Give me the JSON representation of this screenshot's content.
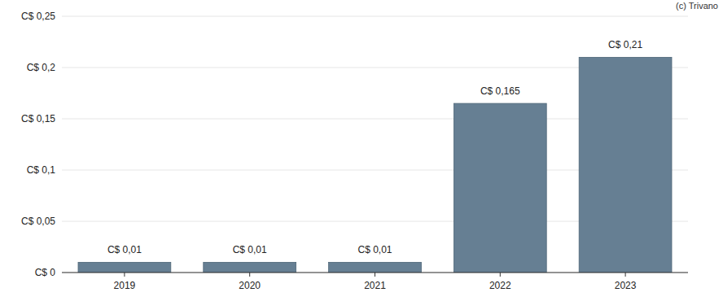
{
  "chart_data": {
    "type": "bar",
    "annotations": [
      "(c) Trivano"
    ],
    "categories": [
      "2019",
      "2020",
      "2021",
      "2022",
      "2023"
    ],
    "values": [
      0.01,
      0.01,
      0.01,
      0.165,
      0.21
    ],
    "value_labels": [
      "C$ 0,01",
      "C$ 0,01",
      "C$ 0,01",
      "C$ 0,165",
      "C$ 0,21"
    ],
    "data_labels": true,
    "color": "#667f93",
    "ylim": [
      0,
      0.25
    ],
    "yticks": [
      {
        "value": 0,
        "label": "C$ 0"
      },
      {
        "value": 0.05,
        "label": "C$ 0,05"
      },
      {
        "value": 0.1,
        "label": "C$ 0,1"
      },
      {
        "value": 0.15,
        "label": "C$ 0,15"
      },
      {
        "value": 0.2,
        "label": "C$ 0,2"
      },
      {
        "value": 0.25,
        "label": "C$ 0,25"
      }
    ],
    "grid": true
  }
}
